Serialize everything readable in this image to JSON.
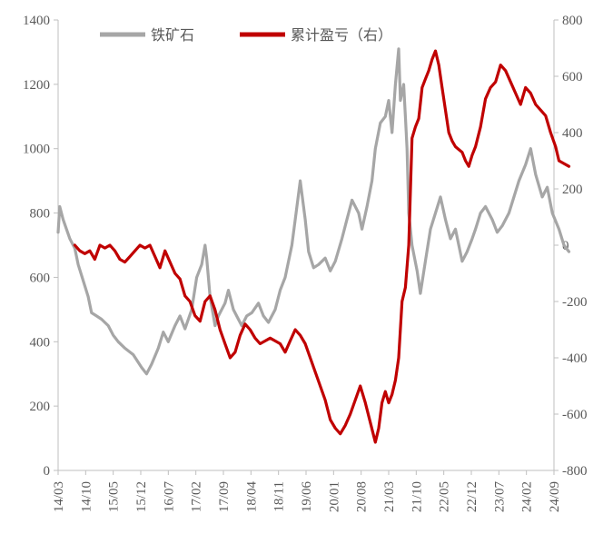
{
  "chart_data": {
    "type": "line",
    "grid": false,
    "legend_position": "top",
    "x_categories": [
      "14/03",
      "14/10",
      "15/05",
      "15/12",
      "16/07",
      "17/02",
      "17/09",
      "18/04",
      "18/11",
      "19/06",
      "20/01",
      "20/08",
      "21/03",
      "21/10",
      "22/05",
      "22/12",
      "23/07",
      "24/02",
      "24/09"
    ],
    "y_left": {
      "range": [
        0,
        1400
      ],
      "ticks": [
        0,
        200,
        400,
        600,
        800,
        1000,
        1200,
        1400
      ]
    },
    "y_right": {
      "range": [
        -800,
        800
      ],
      "ticks": [
        -800,
        -600,
        -400,
        -200,
        0,
        200,
        400,
        600,
        800
      ]
    },
    "series": [
      {
        "name": "铁矿石",
        "axis": "left",
        "color": "#a6a6a6",
        "points": [
          [
            0.0,
            740
          ],
          [
            0.1,
            820
          ],
          [
            0.3,
            780
          ],
          [
            0.5,
            750
          ],
          [
            0.7,
            720
          ],
          [
            1.0,
            690
          ],
          [
            1.2,
            640
          ],
          [
            1.5,
            590
          ],
          [
            1.8,
            540
          ],
          [
            2.0,
            490
          ],
          [
            2.3,
            480
          ],
          [
            2.6,
            470
          ],
          [
            3.0,
            450
          ],
          [
            3.3,
            420
          ],
          [
            3.6,
            400
          ],
          [
            4.0,
            380
          ],
          [
            4.5,
            360
          ],
          [
            5.0,
            320
          ],
          [
            5.3,
            300
          ],
          [
            5.6,
            330
          ],
          [
            6.0,
            380
          ],
          [
            6.3,
            430
          ],
          [
            6.6,
            400
          ],
          [
            7.0,
            450
          ],
          [
            7.3,
            480
          ],
          [
            7.6,
            440
          ],
          [
            8.0,
            500
          ],
          [
            8.3,
            600
          ],
          [
            8.6,
            640
          ],
          [
            8.8,
            700
          ],
          [
            8.9,
            660
          ],
          [
            9.1,
            540
          ],
          [
            9.4,
            450
          ],
          [
            9.6,
            480
          ],
          [
            10.0,
            520
          ],
          [
            10.2,
            560
          ],
          [
            10.5,
            500
          ],
          [
            10.8,
            470
          ],
          [
            11.0,
            450
          ],
          [
            11.3,
            480
          ],
          [
            11.6,
            490
          ],
          [
            12.0,
            520
          ],
          [
            12.3,
            480
          ],
          [
            12.6,
            460
          ],
          [
            13.0,
            500
          ],
          [
            13.3,
            560
          ],
          [
            13.6,
            600
          ],
          [
            14.0,
            700
          ],
          [
            14.2,
            780
          ],
          [
            14.5,
            900
          ],
          [
            14.8,
            780
          ],
          [
            15.0,
            680
          ],
          [
            15.3,
            630
          ],
          [
            15.6,
            640
          ],
          [
            16.0,
            660
          ],
          [
            16.3,
            620
          ],
          [
            16.6,
            650
          ],
          [
            17.0,
            720
          ],
          [
            17.3,
            780
          ],
          [
            17.6,
            840
          ],
          [
            18.0,
            800
          ],
          [
            18.2,
            750
          ],
          [
            18.5,
            820
          ],
          [
            18.8,
            900
          ],
          [
            19.0,
            1000
          ],
          [
            19.3,
            1080
          ],
          [
            19.6,
            1100
          ],
          [
            19.8,
            1150
          ],
          [
            20.0,
            1050
          ],
          [
            20.2,
            1200
          ],
          [
            20.4,
            1310
          ],
          [
            20.5,
            1150
          ],
          [
            20.7,
            1200
          ],
          [
            20.8,
            1100
          ],
          [
            20.9,
            1000
          ],
          [
            21.0,
            800
          ],
          [
            21.2,
            700
          ],
          [
            21.5,
            620
          ],
          [
            21.7,
            550
          ],
          [
            22.0,
            650
          ],
          [
            22.3,
            750
          ],
          [
            22.6,
            800
          ],
          [
            22.9,
            850
          ],
          [
            23.2,
            780
          ],
          [
            23.5,
            720
          ],
          [
            23.8,
            750
          ],
          [
            24.0,
            700
          ],
          [
            24.2,
            650
          ],
          [
            24.5,
            680
          ],
          [
            24.8,
            720
          ],
          [
            25.0,
            750
          ],
          [
            25.3,
            800
          ],
          [
            25.6,
            820
          ],
          [
            26.0,
            780
          ],
          [
            26.3,
            740
          ],
          [
            26.6,
            760
          ],
          [
            27.0,
            800
          ],
          [
            27.3,
            850
          ],
          [
            27.6,
            900
          ],
          [
            28.0,
            950
          ],
          [
            28.3,
            1000
          ],
          [
            28.6,
            920
          ],
          [
            29.0,
            850
          ],
          [
            29.3,
            880
          ],
          [
            29.6,
            800
          ],
          [
            30.0,
            750
          ],
          [
            30.3,
            700
          ],
          [
            30.6,
            680
          ]
        ]
      },
      {
        "name": "累计盈亏（右）",
        "axis": "right",
        "color": "#c00000",
        "points": [
          [
            1.0,
            0
          ],
          [
            1.3,
            -20
          ],
          [
            1.6,
            -30
          ],
          [
            1.9,
            -20
          ],
          [
            2.2,
            -50
          ],
          [
            2.5,
            0
          ],
          [
            2.8,
            -10
          ],
          [
            3.1,
            0
          ],
          [
            3.4,
            -20
          ],
          [
            3.7,
            -50
          ],
          [
            4.0,
            -60
          ],
          [
            4.3,
            -40
          ],
          [
            4.6,
            -20
          ],
          [
            4.9,
            0
          ],
          [
            5.2,
            -10
          ],
          [
            5.5,
            0
          ],
          [
            5.8,
            -40
          ],
          [
            6.1,
            -80
          ],
          [
            6.4,
            -20
          ],
          [
            6.7,
            -60
          ],
          [
            7.0,
            -100
          ],
          [
            7.3,
            -120
          ],
          [
            7.6,
            -180
          ],
          [
            7.9,
            -200
          ],
          [
            8.2,
            -250
          ],
          [
            8.5,
            -270
          ],
          [
            8.8,
            -200
          ],
          [
            9.1,
            -180
          ],
          [
            9.4,
            -230
          ],
          [
            9.7,
            -300
          ],
          [
            10.0,
            -350
          ],
          [
            10.3,
            -400
          ],
          [
            10.6,
            -380
          ],
          [
            10.9,
            -320
          ],
          [
            11.2,
            -280
          ],
          [
            11.5,
            -300
          ],
          [
            11.8,
            -330
          ],
          [
            12.1,
            -350
          ],
          [
            12.4,
            -340
          ],
          [
            12.7,
            -330
          ],
          [
            13.0,
            -340
          ],
          [
            13.3,
            -350
          ],
          [
            13.6,
            -380
          ],
          [
            13.9,
            -340
          ],
          [
            14.2,
            -300
          ],
          [
            14.5,
            -320
          ],
          [
            14.8,
            -350
          ],
          [
            15.1,
            -400
          ],
          [
            15.4,
            -450
          ],
          [
            15.7,
            -500
          ],
          [
            16.0,
            -550
          ],
          [
            16.3,
            -620
          ],
          [
            16.6,
            -650
          ],
          [
            16.9,
            -670
          ],
          [
            17.2,
            -640
          ],
          [
            17.5,
            -600
          ],
          [
            17.8,
            -550
          ],
          [
            18.1,
            -500
          ],
          [
            18.4,
            -560
          ],
          [
            18.7,
            -630
          ],
          [
            19.0,
            -700
          ],
          [
            19.2,
            -650
          ],
          [
            19.4,
            -560
          ],
          [
            19.6,
            -520
          ],
          [
            19.8,
            -560
          ],
          [
            20.0,
            -530
          ],
          [
            20.2,
            -480
          ],
          [
            20.4,
            -400
          ],
          [
            20.6,
            -200
          ],
          [
            20.8,
            -150
          ],
          [
            21.0,
            0
          ],
          [
            21.2,
            380
          ],
          [
            21.4,
            420
          ],
          [
            21.6,
            450
          ],
          [
            21.8,
            560
          ],
          [
            22.0,
            590
          ],
          [
            22.2,
            620
          ],
          [
            22.4,
            660
          ],
          [
            22.6,
            690
          ],
          [
            22.8,
            640
          ],
          [
            23.0,
            560
          ],
          [
            23.2,
            480
          ],
          [
            23.4,
            400
          ],
          [
            23.6,
            370
          ],
          [
            23.8,
            350
          ],
          [
            24.0,
            340
          ],
          [
            24.2,
            330
          ],
          [
            24.4,
            300
          ],
          [
            24.6,
            280
          ],
          [
            24.8,
            320
          ],
          [
            25.0,
            350
          ],
          [
            25.3,
            420
          ],
          [
            25.6,
            520
          ],
          [
            25.9,
            560
          ],
          [
            26.2,
            580
          ],
          [
            26.5,
            640
          ],
          [
            26.8,
            620
          ],
          [
            27.1,
            580
          ],
          [
            27.4,
            540
          ],
          [
            27.7,
            500
          ],
          [
            28.0,
            560
          ],
          [
            28.3,
            540
          ],
          [
            28.6,
            500
          ],
          [
            28.9,
            480
          ],
          [
            29.2,
            460
          ],
          [
            29.5,
            400
          ],
          [
            29.8,
            350
          ],
          [
            30.0,
            300
          ],
          [
            30.3,
            290
          ],
          [
            30.6,
            280
          ]
        ]
      }
    ]
  },
  "legend": {
    "item1_label": "铁矿石",
    "item2_label": "累计盈亏（右）"
  },
  "colors": {
    "iron_ore": "#a6a6a6",
    "cumulative_pnl": "#c00000",
    "axis": "#bfbfbf",
    "text": "#595959"
  }
}
